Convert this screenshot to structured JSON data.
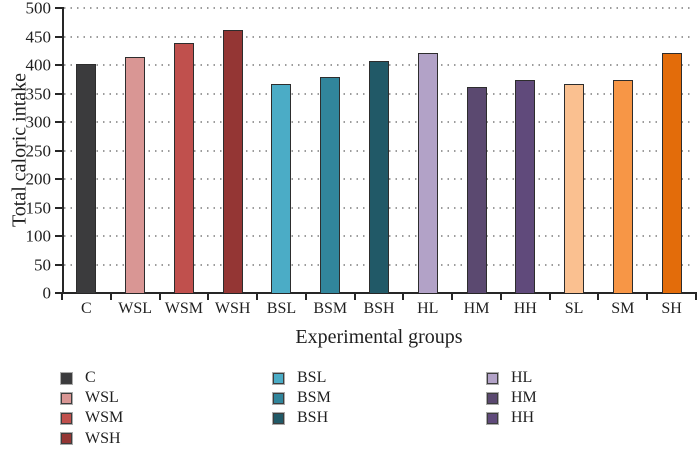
{
  "chart_data": {
    "type": "bar",
    "title": "",
    "xlabel": "Experimental groups",
    "ylabel": "Total caloric intake",
    "categories": [
      "C",
      "WSL",
      "WSM",
      "WSH",
      "BSL",
      "BSM",
      "BSH",
      "HL",
      "HM",
      "HH",
      "SL",
      "SM",
      "SH"
    ],
    "values": [
      402,
      414,
      439,
      462,
      366,
      379,
      407,
      421,
      362,
      373,
      367,
      373,
      421
    ],
    "bar_colors": [
      "#3B3B3D",
      "#D99694",
      "#C0504D",
      "#943634",
      "#4BACC6",
      "#31859B",
      "#215967",
      "#B2A2C7",
      "#5B4970",
      "#604A7B",
      "#FAC090",
      "#F79646",
      "#E36C0A"
    ],
    "ylim": [
      0,
      500
    ],
    "ytick_step": 50,
    "ytick_labels": [
      "0",
      "50",
      "100",
      "150",
      "200",
      "250",
      "300",
      "350",
      "400",
      "450",
      "500"
    ],
    "grid": "horizontal-dotted",
    "grid_color": "#9c9c9c",
    "axis_color": "#262626",
    "bar_edge_color": "#2d2d2d",
    "legend": {
      "position": "below-chart",
      "columns": [
        {
          "items": [
            "C",
            "WSL",
            "WSM",
            "WSH"
          ]
        },
        {
          "items": [
            "BSL",
            "BSM",
            "BSH"
          ]
        },
        {
          "items": [
            "HL",
            "HM",
            "HH"
          ]
        }
      ]
    }
  }
}
